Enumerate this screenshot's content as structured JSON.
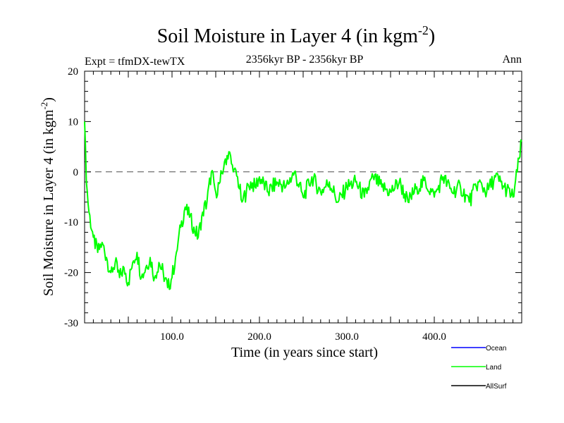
{
  "chart_data": {
    "type": "line",
    "title": {
      "main": "Soil Moisture in Layer 4 (in kgm",
      "sup": "-2",
      "close": ")"
    },
    "subtitle_left": "Expt = tfmDX-tewTX",
    "subtitle_center": "2356kyr BP - 2356kyr BP",
    "subtitle_right": "Ann",
    "xlabel": "Time (in years since start)",
    "ylabel": {
      "main": "Soil Moisture in Layer 4 (in kgm",
      "sup": "-2",
      "close": ")"
    },
    "xlim": [
      0,
      500
    ],
    "ylim": [
      -30,
      20
    ],
    "xticks": [
      100,
      200,
      300,
      400
    ],
    "xtick_labels": [
      "100.0",
      "200.0",
      "300.0",
      "400.0"
    ],
    "yticks": [
      -30,
      -20,
      -10,
      0,
      10,
      20
    ],
    "ytick_labels": [
      "-30",
      "-20",
      "-10",
      "0",
      "10",
      "20"
    ],
    "reference_line": 0,
    "legend": [
      {
        "name": "Ocean",
        "color": "#0000ff"
      },
      {
        "name": "Land",
        "color": "#00ff00"
      },
      {
        "name": "AllSurf",
        "color": "#000000"
      }
    ],
    "series": [
      {
        "name": "Land",
        "color": "#00ff00",
        "x": [
          0,
          2,
          5,
          10,
          15,
          20,
          25,
          30,
          35,
          40,
          45,
          50,
          55,
          60,
          65,
          70,
          75,
          80,
          85,
          90,
          95,
          100,
          105,
          110,
          115,
          120,
          125,
          130,
          135,
          140,
          145,
          150,
          155,
          160,
          165,
          170,
          175,
          180,
          185,
          190,
          195,
          200,
          210,
          220,
          230,
          240,
          250,
          260,
          270,
          280,
          290,
          300,
          310,
          320,
          330,
          340,
          350,
          360,
          370,
          380,
          390,
          400,
          410,
          420,
          430,
          440,
          450,
          460,
          470,
          480,
          490,
          495,
          500
        ],
        "values": [
          10,
          -2,
          -8,
          -13,
          -16,
          -14,
          -17,
          -20,
          -18,
          -21,
          -19,
          -22,
          -18,
          -16,
          -21,
          -19,
          -17,
          -21,
          -18,
          -20,
          -23,
          -21,
          -16,
          -11,
          -7,
          -9,
          -11,
          -13,
          -8,
          -6,
          0,
          -4,
          -2,
          2,
          4,
          0,
          -1,
          -6,
          -4,
          -2,
          -3,
          -1,
          -4,
          -2,
          -3,
          0,
          -5,
          -1,
          -4,
          -2,
          -6,
          -3,
          -2,
          -5,
          -1,
          -3,
          -4,
          -2,
          -6,
          -3,
          -2,
          -5,
          -1,
          -4,
          -3,
          -6,
          -2,
          -4,
          -1,
          -3,
          -5,
          0,
          6
        ]
      }
    ]
  }
}
